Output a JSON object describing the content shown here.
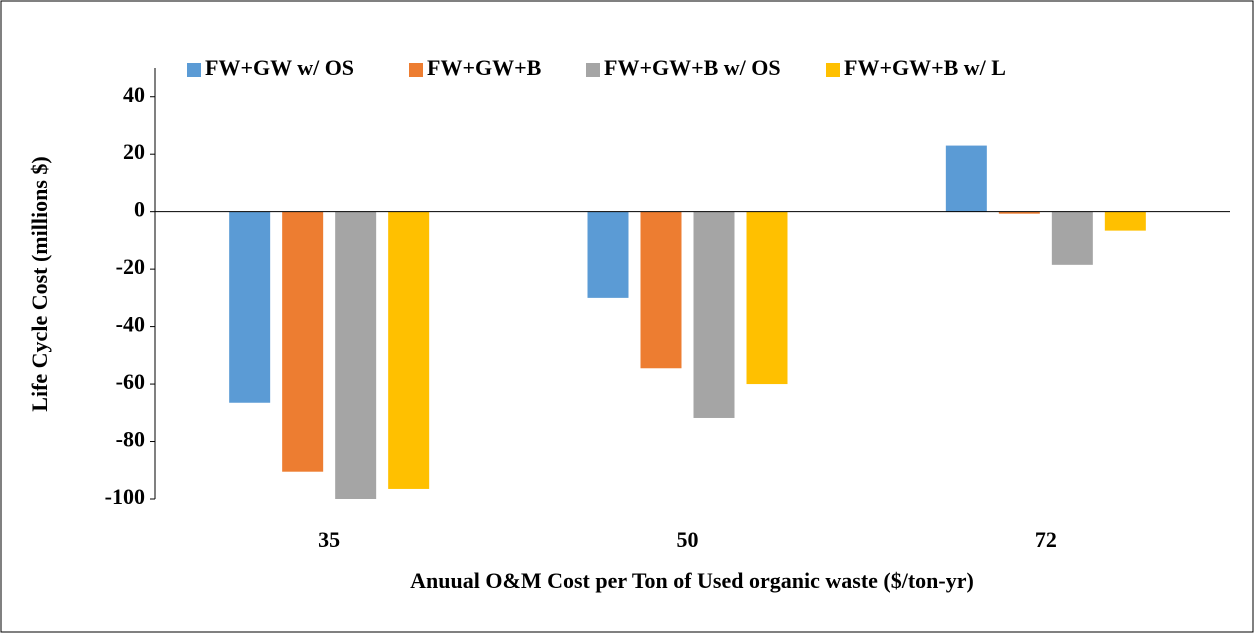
{
  "chart_data": {
    "type": "bar",
    "x_label": "Anuual O&M Cost per Ton of Used organic waste ($/ton-yr)",
    "y_label": "Life Cycle Cost  (millions $)",
    "categories": [
      "35",
      "50",
      "72"
    ],
    "series": [
      {
        "name": "FW+GW w/ OS",
        "color": "#5b9bd5",
        "values": [
          -66.5,
          -30,
          23
        ]
      },
      {
        "name": "FW+GW+B",
        "color": "#ed7d31",
        "values": [
          -90.5,
          -54.5,
          -0.7
        ]
      },
      {
        "name": "FW+GW+B w/ OS",
        "color": "#a5a5a5",
        "values": [
          -100,
          -71.8,
          -18.5
        ]
      },
      {
        "name": "FW+GW+B w/ L",
        "color": "#ffc000",
        "values": [
          -96.5,
          -60,
          -6.6
        ]
      }
    ],
    "ylim": [
      -100,
      50
    ],
    "yticks": [
      -100,
      -80,
      -60,
      -40,
      -20,
      0,
      20,
      40
    ],
    "legend": "top"
  }
}
